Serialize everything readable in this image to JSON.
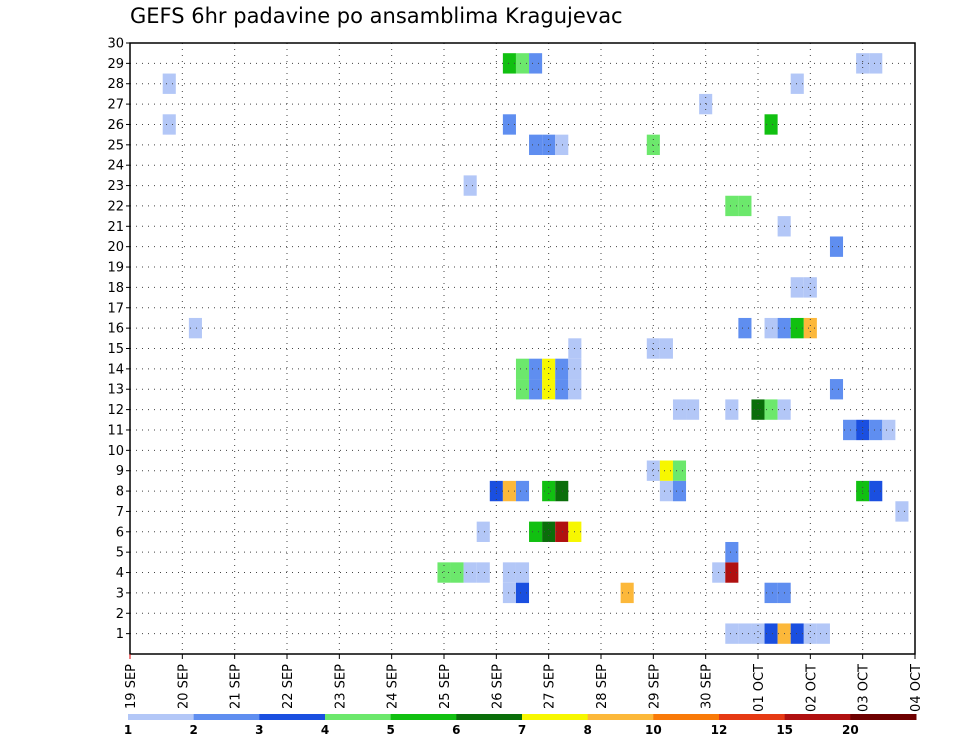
{
  "chart_data": {
    "type": "heatmap",
    "title": "GEFS 6hr padavine po ansamblima Kragujevac",
    "xlabel": "",
    "ylabel": "",
    "y_ticks": [
      "1",
      "2",
      "3",
      "4",
      "5",
      "6",
      "7",
      "8",
      "9",
      "10",
      "11",
      "12",
      "13",
      "14",
      "15",
      "16",
      "17",
      "18",
      "19",
      "20",
      "21",
      "22",
      "23",
      "24",
      "25",
      "26",
      "27",
      "28",
      "29",
      "30"
    ],
    "x_ticks": [
      "19 SEP",
      "20 SEP",
      "21 SEP",
      "22 SEP",
      "23 SEP",
      "24 SEP",
      "25 SEP",
      "26 SEP",
      "27 SEP",
      "28 SEP",
      "29 SEP",
      "30 SEP",
      "01 OCT",
      "02 OCT",
      "03 OCT",
      "04 OCT"
    ],
    "grid": true,
    "colorbar": {
      "labels": [
        "1",
        "2",
        "3",
        "4",
        "5",
        "6",
        "7",
        "8",
        "10",
        "12",
        "15",
        "20"
      ],
      "colors": [
        "#b3c7f7",
        "#5f8ef0",
        "#1a4fe0",
        "#6ce86c",
        "#11c011",
        "#0a6e0a",
        "#f7f700",
        "#fcb83a",
        "#f97a08",
        "#e63a14",
        "#b01010",
        "#6e0000"
      ]
    },
    "x_units": "days since 19 SEP 00Z (6-hour steps of 0.25)",
    "cells": [
      {
        "x": 0.75,
        "m": 28,
        "c": 0
      },
      {
        "x": 0.75,
        "m": 26,
        "c": 0
      },
      {
        "x": 1.25,
        "m": 16,
        "c": 0
      },
      {
        "x": 6.0,
        "m": 4,
        "c": 3
      },
      {
        "x": 6.25,
        "m": 4,
        "c": 3
      },
      {
        "x": 6.5,
        "m": 4,
        "c": 0
      },
      {
        "x": 6.75,
        "m": 4,
        "c": 0
      },
      {
        "x": 6.5,
        "m": 23,
        "c": 0
      },
      {
        "x": 6.75,
        "m": 6,
        "c": 0
      },
      {
        "x": 7.0,
        "m": 8,
        "c": 2
      },
      {
        "x": 7.25,
        "m": 8,
        "c": 7
      },
      {
        "x": 7.5,
        "m": 8,
        "c": 1
      },
      {
        "x": 7.25,
        "m": 4,
        "c": 0
      },
      {
        "x": 7.5,
        "m": 4,
        "c": 0
      },
      {
        "x": 7.25,
        "m": 3,
        "c": 0
      },
      {
        "x": 7.5,
        "m": 3,
        "c": 2
      },
      {
        "x": 7.25,
        "m": 26,
        "c": 1
      },
      {
        "x": 7.25,
        "m": 29,
        "c": 4
      },
      {
        "x": 7.5,
        "m": 29,
        "c": 3
      },
      {
        "x": 7.75,
        "m": 29,
        "c": 1
      },
      {
        "x": 7.5,
        "m": 14,
        "c": 3
      },
      {
        "x": 7.75,
        "m": 14,
        "c": 1
      },
      {
        "x": 8.0,
        "m": 14,
        "c": 6
      },
      {
        "x": 8.25,
        "m": 14,
        "c": 1
      },
      {
        "x": 8.5,
        "m": 14,
        "c": 0
      },
      {
        "x": 7.5,
        "m": 13,
        "c": 3
      },
      {
        "x": 7.75,
        "m": 13,
        "c": 1
      },
      {
        "x": 8.0,
        "m": 13,
        "c": 6
      },
      {
        "x": 8.25,
        "m": 13,
        "c": 1
      },
      {
        "x": 8.5,
        "m": 13,
        "c": 0
      },
      {
        "x": 7.75,
        "m": 25,
        "c": 1
      },
      {
        "x": 8.0,
        "m": 25,
        "c": 1
      },
      {
        "x": 8.25,
        "m": 25,
        "c": 0
      },
      {
        "x": 7.75,
        "m": 6,
        "c": 4
      },
      {
        "x": 8.0,
        "m": 6,
        "c": 5
      },
      {
        "x": 8.25,
        "m": 6,
        "c": 10
      },
      {
        "x": 8.5,
        "m": 6,
        "c": 6
      },
      {
        "x": 8.0,
        "m": 8,
        "c": 4
      },
      {
        "x": 8.25,
        "m": 8,
        "c": 5
      },
      {
        "x": 8.5,
        "m": 15,
        "c": 0
      },
      {
        "x": 9.5,
        "m": 3,
        "c": 7
      },
      {
        "x": 10.0,
        "m": 25,
        "c": 3
      },
      {
        "x": 10.0,
        "m": 15,
        "c": 0
      },
      {
        "x": 10.25,
        "m": 15,
        "c": 0
      },
      {
        "x": 10.0,
        "m": 9,
        "c": 0
      },
      {
        "x": 10.25,
        "m": 9,
        "c": 6
      },
      {
        "x": 10.5,
        "m": 9,
        "c": 3
      },
      {
        "x": 10.25,
        "m": 8,
        "c": 0
      },
      {
        "x": 10.5,
        "m": 8,
        "c": 1
      },
      {
        "x": 10.5,
        "m": 12,
        "c": 0
      },
      {
        "x": 10.75,
        "m": 12,
        "c": 0
      },
      {
        "x": 11.0,
        "m": 27,
        "c": 0
      },
      {
        "x": 11.25,
        "m": 4,
        "c": 0
      },
      {
        "x": 11.5,
        "m": 4,
        "c": 10
      },
      {
        "x": 11.5,
        "m": 5,
        "c": 1
      },
      {
        "x": 11.5,
        "m": 1,
        "c": 0
      },
      {
        "x": 11.75,
        "m": 1,
        "c": 0
      },
      {
        "x": 12.0,
        "m": 1,
        "c": 0
      },
      {
        "x": 12.25,
        "m": 1,
        "c": 2
      },
      {
        "x": 12.5,
        "m": 1,
        "c": 7
      },
      {
        "x": 12.75,
        "m": 1,
        "c": 2
      },
      {
        "x": 13.0,
        "m": 1,
        "c": 0
      },
      {
        "x": 13.25,
        "m": 1,
        "c": 0
      },
      {
        "x": 11.5,
        "m": 22,
        "c": 3
      },
      {
        "x": 11.75,
        "m": 22,
        "c": 3
      },
      {
        "x": 11.5,
        "m": 12,
        "c": 0
      },
      {
        "x": 11.75,
        "m": 16,
        "c": 1
      },
      {
        "x": 12.0,
        "m": 12,
        "c": 5
      },
      {
        "x": 12.25,
        "m": 12,
        "c": 3
      },
      {
        "x": 12.5,
        "m": 12,
        "c": 0
      },
      {
        "x": 12.25,
        "m": 26,
        "c": 4
      },
      {
        "x": 12.25,
        "m": 3,
        "c": 1
      },
      {
        "x": 12.5,
        "m": 3,
        "c": 1
      },
      {
        "x": 12.25,
        "m": 16,
        "c": 0
      },
      {
        "x": 12.5,
        "m": 16,
        "c": 1
      },
      {
        "x": 12.75,
        "m": 16,
        "c": 4
      },
      {
        "x": 13.0,
        "m": 16,
        "c": 7
      },
      {
        "x": 12.5,
        "m": 21,
        "c": 0
      },
      {
        "x": 12.75,
        "m": 28,
        "c": 0
      },
      {
        "x": 12.75,
        "m": 18,
        "c": 0
      },
      {
        "x": 13.0,
        "m": 18,
        "c": 0
      },
      {
        "x": 13.5,
        "m": 20,
        "c": 1
      },
      {
        "x": 13.5,
        "m": 13,
        "c": 1
      },
      {
        "x": 13.75,
        "m": 11,
        "c": 1
      },
      {
        "x": 14.0,
        "m": 11,
        "c": 2
      },
      {
        "x": 14.25,
        "m": 11,
        "c": 1
      },
      {
        "x": 14.5,
        "m": 11,
        "c": 0
      },
      {
        "x": 14.0,
        "m": 8,
        "c": 4
      },
      {
        "x": 14.25,
        "m": 8,
        "c": 2
      },
      {
        "x": 14.0,
        "m": 29,
        "c": 0
      },
      {
        "x": 14.25,
        "m": 29,
        "c": 0
      },
      {
        "x": 14.75,
        "m": 7,
        "c": 0
      }
    ]
  }
}
